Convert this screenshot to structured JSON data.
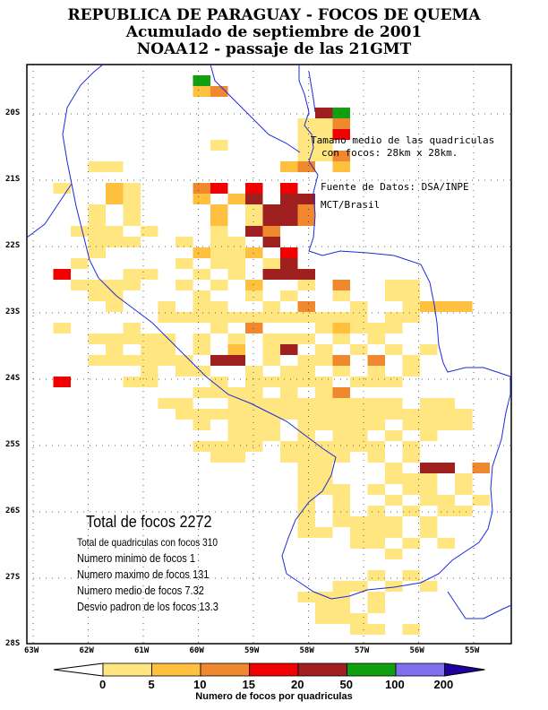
{
  "titles": {
    "line1": "REPUBLICA DE PARAGUAY - FOCOS DE QUEMA",
    "line2": "Acumulado de septiembre de 2001",
    "line3": "NOAA12 - passaje de las 21GMT"
  },
  "notes": {
    "grid_size_1": "Tamano medio de las quadriculas",
    "grid_size_2": "con focos: 28km x 28km.",
    "source_1": "Fuente de Datos: DSA/INPE",
    "source_2": "MCT/Brasil"
  },
  "stats": {
    "total": "Total de focos 2272",
    "cells": "Total de quadriculas con focos 310",
    "min": "Numero minimo de focos 1",
    "max": "Numero maximo de focos 131",
    "mean": "Numero medio de focos 7.32",
    "sd": "Desvio padron de los focos 13.3"
  },
  "axes": {
    "lon_labels": [
      "63W",
      "62W",
      "61W",
      "60W",
      "59W",
      "58W",
      "57W",
      "56W",
      "55W"
    ],
    "lat_labels": [
      "20S",
      "21S",
      "22S",
      "23S",
      "24S",
      "25S",
      "26S",
      "27S",
      "28S"
    ]
  },
  "colorbar": {
    "title": "Numero de focos por quadriculas",
    "ticks": [
      "0",
      "5",
      "10",
      "15",
      "20",
      "50",
      "100",
      "200"
    ],
    "colors": [
      "#ffe680",
      "#ffc040",
      "#f08830",
      "#f00000",
      "#a02020",
      "#10a010",
      "#8070f0",
      "#2000a0"
    ]
  },
  "map_cells": {
    "bins": [
      "1-5",
      "5-10",
      "10-15",
      "15-20",
      "20-50",
      "50-100",
      "100-200"
    ],
    "grid": [
      "..........................",
      ".........6................",
      ".........23...............",
      "...........................",
      "................56........",
      "...............113........",
      "...............114........",
      "..........1....11.........",
      "...............113........",
      "...11.........23.2........",
      ".........................",
      ".1..21...34.4.4..........",
      "....21...2.25.55.........",
      "...1.1....2.1553.........",
      "...1.1....2.1553.........",
      "..111.1...1.53..........",
      "...111..1.11.5...........",
      "...1.....2112.4..........",
      "..1.....1.11.15..........",
      ".4...11..1.1.555.........",
      "..1111..1.1.2..1.3..11...",
      "...11....1..1.1..1..11...",
      "....1..1.11..1.3..1..1222...",
      ".......111111111111.11...",
      ".1...1....1.3...12111...",
      "...11111.1.1.111.1.1.......",
      "....1.11.1.2.15.1.1.1.1...",
      "...111111.55.1.113.3.1...",
      "......1.11..1.11.1.1.1...",
      ".4...11...1.11111.111....",
      ".........1111.1.13......",
      ".......11..1111111111.11.",
      "........11111111111111111",
      ".........1.111.11111.1111",
      "...........111.1.11.1.1",
      ".........1111.111111.1..",
      "..........11..1111.1.1.",
      "...............11...1.55.3",
      "...............11...111.1",
      "...............111.1.11.1",
      "...............1.1..1.11.1",
      "...............1.1.1.1.11",
      "...............1.1111.1..",
      "...............11.111.1.",
      "..................11.1.1",
      "....................1..",
      "..............................1.",
      "...................1.1.",
      ".................11.1.1.",
      "...............111.1...",
      "................11.1",
      "................111",
      "..................11.1",
      "..................111"
    ]
  }
}
